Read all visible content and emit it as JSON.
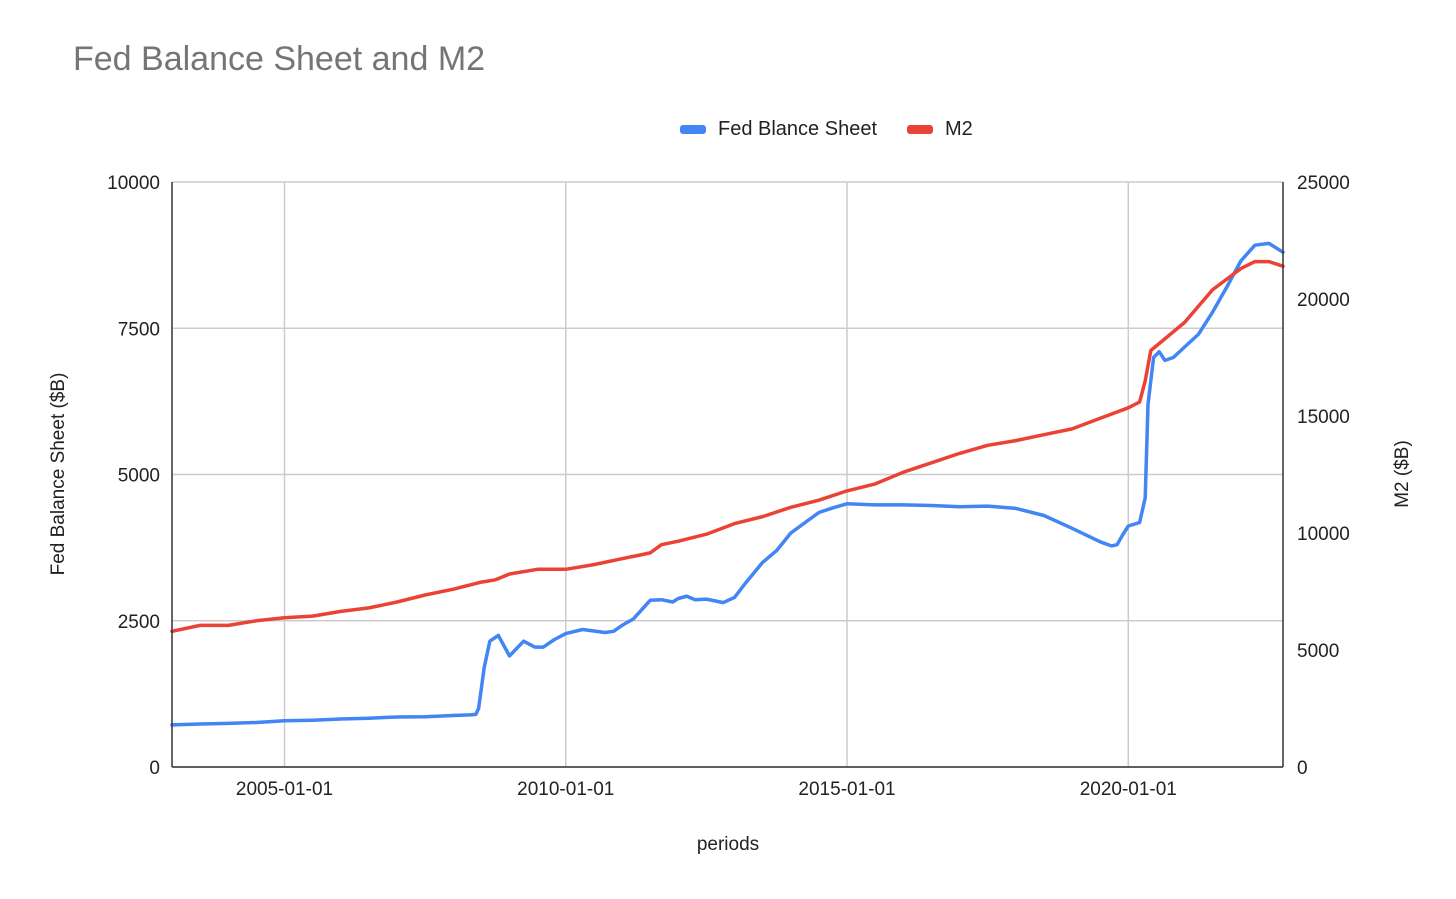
{
  "chart_data": {
    "type": "line",
    "title": "Fed Balance Sheet and M2",
    "xlabel": "periods",
    "ylabel_left": "Fed Balance Sheet ($B)",
    "ylabel_right": "M2 ($B)",
    "x_range": [
      2003.0,
      2022.75
    ],
    "ylim_left": [
      0,
      10000
    ],
    "ylim_right": [
      0,
      25000
    ],
    "y_ticks_left": [
      "0",
      "2500",
      "5000",
      "7500",
      "10000"
    ],
    "y_ticks_right": [
      "0",
      "5000",
      "10000",
      "15000",
      "20000",
      "25000"
    ],
    "x_ticks": [
      {
        "label": "2005-01-01",
        "x": 2005.0
      },
      {
        "label": "2010-01-01",
        "x": 2010.0
      },
      {
        "label": "2015-01-01",
        "x": 2015.0
      },
      {
        "label": "2020-01-01",
        "x": 2020.0
      }
    ],
    "legend_position": "top",
    "grid": true,
    "series": [
      {
        "name": "Fed Blance Sheet",
        "axis": "left",
        "color": "#4285F4",
        "points": [
          [
            2003.0,
            720
          ],
          [
            2003.5,
            735
          ],
          [
            2004.0,
            745
          ],
          [
            2004.5,
            760
          ],
          [
            2005.0,
            790
          ],
          [
            2005.5,
            800
          ],
          [
            2006.0,
            820
          ],
          [
            2006.5,
            835
          ],
          [
            2007.0,
            855
          ],
          [
            2007.5,
            860
          ],
          [
            2008.0,
            880
          ],
          [
            2008.3,
            890
          ],
          [
            2008.4,
            900
          ],
          [
            2008.45,
            1000
          ],
          [
            2008.55,
            1700
          ],
          [
            2008.65,
            2150
          ],
          [
            2008.8,
            2250
          ],
          [
            2009.0,
            1900
          ],
          [
            2009.25,
            2150
          ],
          [
            2009.45,
            2050
          ],
          [
            2009.6,
            2050
          ],
          [
            2009.8,
            2180
          ],
          [
            2010.0,
            2280
          ],
          [
            2010.3,
            2350
          ],
          [
            2010.7,
            2300
          ],
          [
            2010.85,
            2320
          ],
          [
            2011.0,
            2420
          ],
          [
            2011.2,
            2530
          ],
          [
            2011.5,
            2850
          ],
          [
            2011.7,
            2860
          ],
          [
            2011.9,
            2820
          ],
          [
            2012.0,
            2880
          ],
          [
            2012.15,
            2920
          ],
          [
            2012.3,
            2860
          ],
          [
            2012.5,
            2870
          ],
          [
            2012.8,
            2810
          ],
          [
            2013.0,
            2900
          ],
          [
            2013.2,
            3150
          ],
          [
            2013.5,
            3500
          ],
          [
            2013.75,
            3700
          ],
          [
            2014.0,
            4000
          ],
          [
            2014.5,
            4350
          ],
          [
            2014.75,
            4430
          ],
          [
            2015.0,
            4500
          ],
          [
            2015.5,
            4480
          ],
          [
            2016.0,
            4480
          ],
          [
            2016.5,
            4470
          ],
          [
            2017.0,
            4450
          ],
          [
            2017.5,
            4460
          ],
          [
            2018.0,
            4420
          ],
          [
            2018.5,
            4300
          ],
          [
            2019.0,
            4080
          ],
          [
            2019.5,
            3850
          ],
          [
            2019.7,
            3780
          ],
          [
            2019.8,
            3800
          ],
          [
            2019.9,
            3970
          ],
          [
            2020.0,
            4120
          ],
          [
            2020.2,
            4180
          ],
          [
            2020.3,
            4600
          ],
          [
            2020.35,
            6200
          ],
          [
            2020.45,
            7000
          ],
          [
            2020.55,
            7100
          ],
          [
            2020.65,
            6950
          ],
          [
            2020.8,
            7000
          ],
          [
            2021.0,
            7180
          ],
          [
            2021.25,
            7400
          ],
          [
            2021.5,
            7780
          ],
          [
            2021.75,
            8200
          ],
          [
            2022.0,
            8650
          ],
          [
            2022.25,
            8920
          ],
          [
            2022.5,
            8950
          ],
          [
            2022.75,
            8800
          ]
        ]
      },
      {
        "name": "M2",
        "axis": "right",
        "color": "#EA4335",
        "points": [
          [
            2003.0,
            5800
          ],
          [
            2003.5,
            6050
          ],
          [
            2004.0,
            6050
          ],
          [
            2004.5,
            6250
          ],
          [
            2005.0,
            6380
          ],
          [
            2005.5,
            6450
          ],
          [
            2006.0,
            6650
          ],
          [
            2006.5,
            6800
          ],
          [
            2007.0,
            7050
          ],
          [
            2007.5,
            7350
          ],
          [
            2008.0,
            7600
          ],
          [
            2008.5,
            7900
          ],
          [
            2008.75,
            8000
          ],
          [
            2009.0,
            8250
          ],
          [
            2009.5,
            8450
          ],
          [
            2010.0,
            8450
          ],
          [
            2010.5,
            8650
          ],
          [
            2011.0,
            8900
          ],
          [
            2011.5,
            9150
          ],
          [
            2011.7,
            9500
          ],
          [
            2012.0,
            9650
          ],
          [
            2012.5,
            9950
          ],
          [
            2013.0,
            10400
          ],
          [
            2013.5,
            10700
          ],
          [
            2014.0,
            11100
          ],
          [
            2014.5,
            11400
          ],
          [
            2015.0,
            11800
          ],
          [
            2015.5,
            12100
          ],
          [
            2016.0,
            12600
          ],
          [
            2016.5,
            13000
          ],
          [
            2017.0,
            13400
          ],
          [
            2017.5,
            13750
          ],
          [
            2018.0,
            13950
          ],
          [
            2018.5,
            14200
          ],
          [
            2019.0,
            14450
          ],
          [
            2019.5,
            14900
          ],
          [
            2020.0,
            15350
          ],
          [
            2020.2,
            15600
          ],
          [
            2020.3,
            16500
          ],
          [
            2020.4,
            17800
          ],
          [
            2020.6,
            18200
          ],
          [
            2021.0,
            19000
          ],
          [
            2021.5,
            20400
          ],
          [
            2022.0,
            21300
          ],
          [
            2022.25,
            21600
          ],
          [
            2022.5,
            21600
          ],
          [
            2022.75,
            21400
          ]
        ]
      }
    ]
  }
}
